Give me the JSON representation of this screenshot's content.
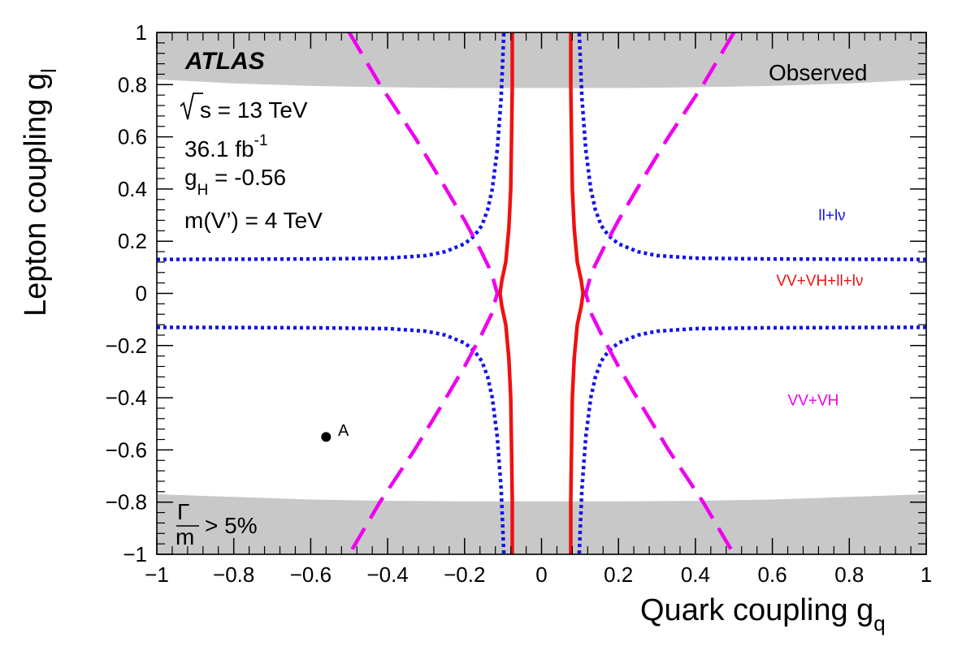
{
  "chart_data": {
    "type": "line",
    "xlabel": "Quark coupling g",
    "xlabel_sub": "q",
    "ylabel": "Lepton coupling g",
    "ylabel_sub": "l",
    "xlim": [
      -1,
      1
    ],
    "ylim": [
      -1,
      1
    ],
    "x_ticks": [
      -1,
      -0.8,
      -0.6,
      -0.4,
      -0.2,
      0,
      0.2,
      0.4,
      0.6,
      0.8,
      1
    ],
    "x_tick_labels": [
      "−1",
      "−0.8",
      "−0.6",
      "−0.4",
      "−0.2",
      "0",
      "0.2",
      "0.4",
      "0.6",
      "0.8",
      "1"
    ],
    "y_ticks": [
      -1,
      -0.8,
      -0.6,
      -0.4,
      -0.2,
      0,
      0.2,
      0.4,
      0.6,
      0.8,
      1
    ],
    "y_tick_labels": [
      "−1",
      "−0.8",
      "−0.6",
      "−0.4",
      "−0.2",
      "0",
      "0.2",
      "0.4",
      "0.6",
      "0.8",
      "1"
    ],
    "grid": false,
    "annotations": {
      "experiment": "ATLAS",
      "energy": "s = 13 TeV",
      "luminosity": "36.1 fb",
      "luminosity_sup": "-1",
      "gH_main": "g",
      "gH_sub": "H",
      "gH_value": " = -0.56",
      "mass": "m(V’) = 4 TeV",
      "observed": "Observed",
      "width_numer": "Γ",
      "width_denom": "m",
      "width_rest": "> 5%",
      "point_label": "A"
    },
    "shaded_regions": {
      "label": "Γ/m > 5%",
      "color": "#c8c8c8",
      "top_boundary": {
        "x": [
          -1,
          -0.8,
          -0.6,
          -0.4,
          -0.2,
          0,
          0.2,
          0.4,
          0.6,
          0.8,
          1
        ],
        "y": [
          0.82,
          0.805,
          0.795,
          0.79,
          0.787,
          0.787,
          0.787,
          0.79,
          0.795,
          0.805,
          0.82
        ]
      },
      "bottom_boundary": {
        "x": [
          -1,
          -0.8,
          -0.6,
          -0.4,
          -0.2,
          0,
          0.2,
          0.4,
          0.6,
          0.8,
          1
        ],
        "y": [
          -0.77,
          -0.78,
          -0.79,
          -0.795,
          -0.797,
          -0.797,
          -0.797,
          -0.795,
          -0.79,
          -0.78,
          -0.77
        ]
      }
    },
    "series": [
      {
        "name": "ll+lν",
        "color": "#1414e6",
        "style": "dotted",
        "curves": [
          {
            "x": [
              -1,
              -0.6,
              -0.4,
              -0.3,
              -0.25,
              -0.2,
              -0.175,
              -0.155,
              -0.14,
              -0.128,
              -0.115,
              -0.105,
              -0.098
            ],
            "y": [
              0.13,
              0.132,
              0.135,
              0.145,
              0.16,
              0.19,
              0.22,
              0.26,
              0.32,
              0.4,
              0.55,
              0.75,
              1.0
            ]
          },
          {
            "x": [
              1,
              0.6,
              0.4,
              0.3,
              0.25,
              0.2,
              0.175,
              0.155,
              0.14,
              0.128,
              0.115,
              0.105,
              0.098
            ],
            "y": [
              0.13,
              0.132,
              0.135,
              0.145,
              0.16,
              0.19,
              0.22,
              0.26,
              0.32,
              0.4,
              0.55,
              0.75,
              1.0
            ]
          },
          {
            "x": [
              -1,
              -0.6,
              -0.4,
              -0.3,
              -0.25,
              -0.2,
              -0.175,
              -0.155,
              -0.14,
              -0.128,
              -0.115,
              -0.105,
              -0.098
            ],
            "y": [
              -0.13,
              -0.132,
              -0.135,
              -0.145,
              -0.16,
              -0.19,
              -0.22,
              -0.26,
              -0.32,
              -0.4,
              -0.55,
              -0.75,
              -1.0
            ]
          },
          {
            "x": [
              1,
              0.6,
              0.4,
              0.3,
              0.25,
              0.2,
              0.175,
              0.155,
              0.14,
              0.128,
              0.115,
              0.105,
              0.098
            ],
            "y": [
              -0.13,
              -0.132,
              -0.135,
              -0.145,
              -0.16,
              -0.19,
              -0.22,
              -0.26,
              -0.32,
              -0.4,
              -0.55,
              -0.75,
              -1.0
            ]
          }
        ]
      },
      {
        "name": "VV+VH",
        "color": "#ee00ee",
        "style": "dashed",
        "curves": [
          {
            "x": [
              -0.5,
              -0.42,
              -0.33,
              -0.26,
              -0.2,
              -0.16,
              -0.13,
              -0.115,
              -0.115,
              -0.13,
              -0.16,
              -0.2,
              -0.26,
              -0.33,
              -0.42,
              -0.5
            ],
            "y": [
              1,
              0.8,
              0.6,
              0.43,
              0.28,
              0.17,
              0.08,
              0.0,
              0.0,
              -0.08,
              -0.17,
              -0.28,
              -0.43,
              -0.6,
              -0.8,
              -1
            ]
          },
          {
            "x": [
              0.5,
              0.42,
              0.33,
              0.26,
              0.2,
              0.16,
              0.13,
              0.115,
              0.115,
              0.13,
              0.16,
              0.2,
              0.26,
              0.33,
              0.42,
              0.5
            ],
            "y": [
              1,
              0.8,
              0.6,
              0.43,
              0.28,
              0.17,
              0.08,
              0.0,
              0.0,
              -0.08,
              -0.17,
              -0.28,
              -0.43,
              -0.6,
              -0.8,
              -1
            ]
          }
        ]
      },
      {
        "name": "VV+VH+ll+lν",
        "color": "#ee1111",
        "style": "solid",
        "curves": [
          {
            "x": [
              -0.076,
              -0.076,
              -0.078,
              -0.08,
              -0.085,
              -0.093,
              -0.103,
              -0.108,
              -0.103,
              -0.093,
              -0.085,
              -0.08,
              -0.078,
              -0.076,
              -0.076
            ],
            "y": [
              1,
              0.8,
              0.6,
              0.4,
              0.25,
              0.12,
              0.05,
              0.0,
              -0.05,
              -0.12,
              -0.25,
              -0.4,
              -0.6,
              -0.8,
              -1
            ]
          },
          {
            "x": [
              0.076,
              0.076,
              0.078,
              0.08,
              0.085,
              0.093,
              0.103,
              0.108,
              0.103,
              0.093,
              0.085,
              0.08,
              0.078,
              0.076,
              0.076
            ],
            "y": [
              1,
              0.8,
              0.6,
              0.4,
              0.25,
              0.12,
              0.05,
              0.0,
              -0.05,
              -0.12,
              -0.25,
              -0.4,
              -0.6,
              -0.8,
              -1
            ]
          }
        ]
      }
    ],
    "points": [
      {
        "name": "A",
        "x": -0.56,
        "y": -0.55
      }
    ],
    "legend_labels": [
      {
        "text": "ll+lν",
        "color": "#1414e6",
        "x": 0.72,
        "y": 0.28
      },
      {
        "text": "VV+VH+ll+lν",
        "color": "#ee1111",
        "x": 0.61,
        "y": 0.03
      },
      {
        "text": "VV+VH",
        "color": "#ee00ee",
        "x": 0.64,
        "y": -0.43
      }
    ]
  }
}
